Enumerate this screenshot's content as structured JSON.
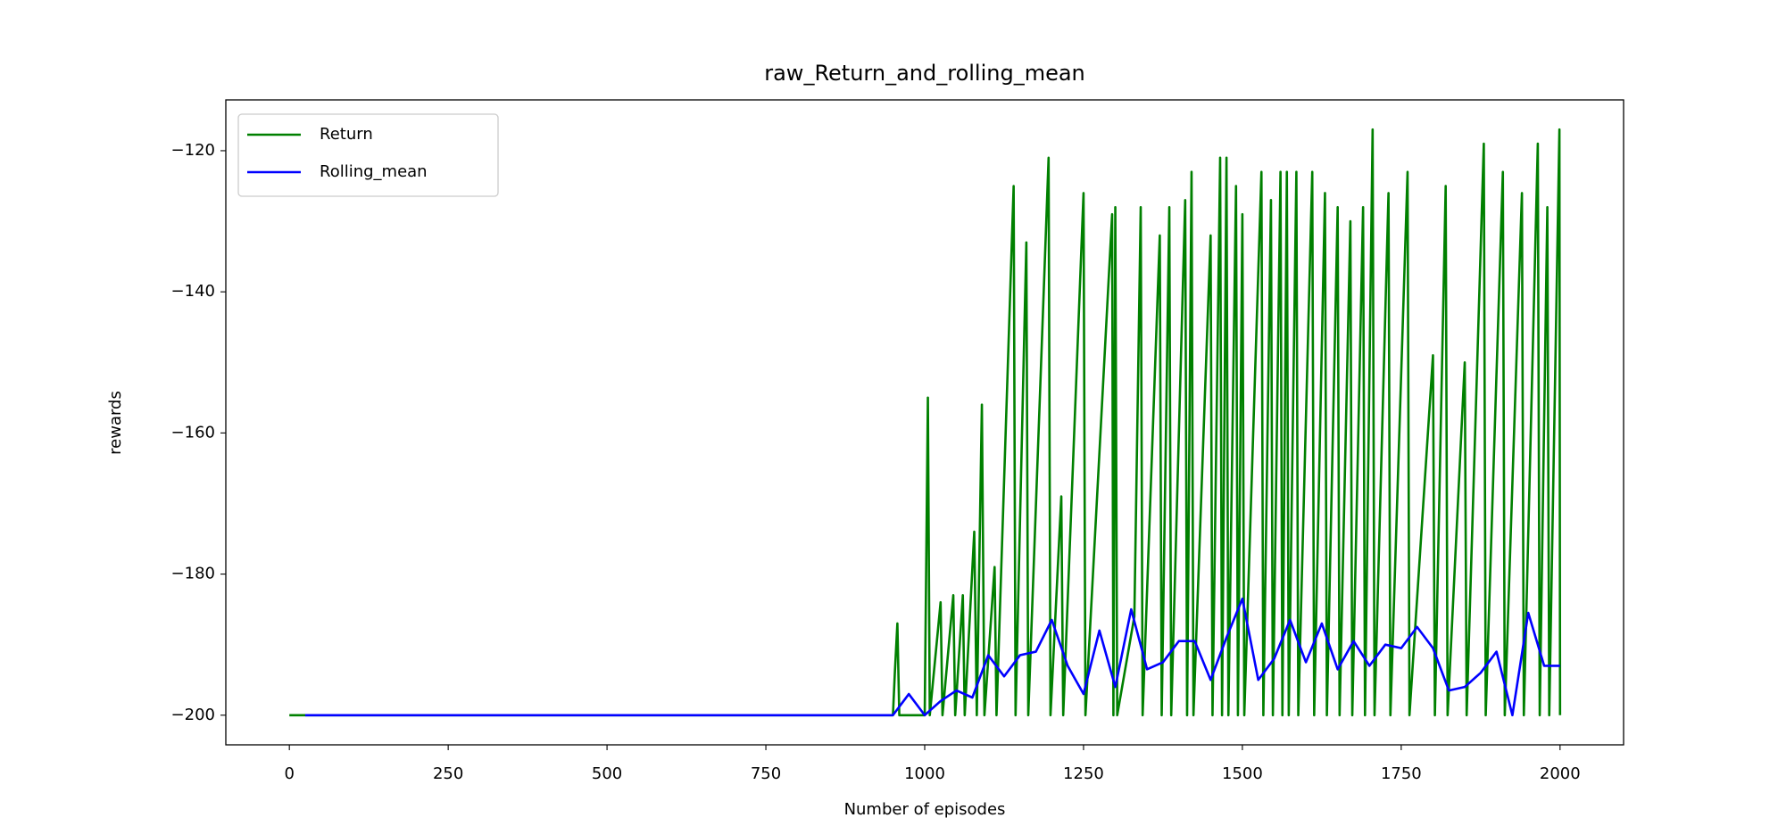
{
  "chart_data": {
    "type": "line",
    "title": "raw_Return_and_rolling_mean",
    "xlabel": "Number of episodes",
    "ylabel": "rewards",
    "xlim": [
      -100,
      2100
    ],
    "ylim": [
      -204.2,
      -112.8
    ],
    "xticks": [
      0,
      250,
      500,
      750,
      1000,
      1250,
      1500,
      1750,
      2000
    ],
    "yticks": [
      {
        "value": -200,
        "label": "−200"
      },
      {
        "value": -180,
        "label": "−180"
      },
      {
        "value": -160,
        "label": "−160"
      },
      {
        "value": -140,
        "label": "−140"
      },
      {
        "value": -120,
        "label": "−120"
      }
    ],
    "legend": "upper left",
    "grid": false,
    "series": [
      {
        "name": "Return",
        "color": "#008000",
        "x": [
          0,
          950,
          953,
          957,
          960,
          1000,
          1005,
          1008,
          1025,
          1028,
          1045,
          1048,
          1060,
          1063,
          1078,
          1082,
          1090,
          1094,
          1110,
          1113,
          1140,
          1143,
          1160,
          1163,
          1195,
          1198,
          1215,
          1218,
          1250,
          1253,
          1295,
          1297,
          1300,
          1303,
          1330,
          1340,
          1343,
          1370,
          1373,
          1385,
          1388,
          1410,
          1413,
          1420,
          1423,
          1450,
          1453,
          1465,
          1468,
          1475,
          1478,
          1490,
          1493,
          1500,
          1503,
          1530,
          1533,
          1545,
          1548,
          1560,
          1563,
          1570,
          1573,
          1585,
          1588,
          1610,
          1613,
          1630,
          1633,
          1650,
          1653,
          1670,
          1673,
          1690,
          1693,
          1705,
          1708,
          1730,
          1733,
          1760,
          1763,
          1800,
          1803,
          1820,
          1823,
          1850,
          1853,
          1880,
          1883,
          1910,
          1913,
          1940,
          1943,
          1965,
          1968,
          1980,
          1983,
          1999,
          2000
        ],
        "values": [
          -200,
          -200,
          -194,
          -187,
          -200,
          -200,
          -155,
          -200,
          -184,
          -200,
          -183,
          -200,
          -183,
          -200,
          -174,
          -200,
          -156,
          -200,
          -179,
          -200,
          -125,
          -200,
          -133,
          -200,
          -121,
          -200,
          -169,
          -200,
          -126,
          -200,
          -129,
          -200,
          -128,
          -200,
          -186,
          -128,
          -200,
          -132,
          -200,
          -128,
          -200,
          -127,
          -200,
          -123,
          -200,
          -132,
          -200,
          -121,
          -200,
          -121,
          -200,
          -125,
          -200,
          -129,
          -200,
          -123,
          -200,
          -127,
          -200,
          -123,
          -200,
          -123,
          -200,
          -123,
          -200,
          -123,
          -200,
          -126,
          -200,
          -128,
          -200,
          -130,
          -200,
          -128,
          -200,
          -117,
          -200,
          -126,
          -200,
          -123,
          -200,
          -149,
          -200,
          -125,
          -200,
          -150,
          -200,
          -119,
          -200,
          -123,
          -200,
          -126,
          -200,
          -119,
          -200,
          -128,
          -200,
          -117,
          -200
        ]
      },
      {
        "name": "Rolling_mean",
        "color": "#0000ff",
        "x": [
          25,
          950,
          975,
          1000,
          1025,
          1050,
          1075,
          1100,
          1125,
          1150,
          1175,
          1200,
          1225,
          1250,
          1275,
          1300,
          1325,
          1350,
          1375,
          1400,
          1425,
          1450,
          1475,
          1500,
          1525,
          1550,
          1575,
          1600,
          1625,
          1650,
          1675,
          1700,
          1725,
          1750,
          1775,
          1800,
          1825,
          1850,
          1875,
          1900,
          1925,
          1950,
          1975,
          2000
        ],
        "values": [
          -200,
          -200,
          -197,
          -200,
          -198,
          -196.5,
          -197.5,
          -191.5,
          -194.5,
          -191.5,
          -191,
          -186.5,
          -193,
          -197,
          -188,
          -196,
          -185,
          -193.5,
          -192.5,
          -189.5,
          -189.5,
          -195,
          -189,
          -183.5,
          -195,
          -192,
          -186.5,
          -192.5,
          -187,
          -193.5,
          -189.5,
          -193,
          -190,
          -190.5,
          -187.5,
          -190.5,
          -196.5,
          -196,
          -194,
          -191,
          -200,
          -185.5,
          -193,
          -193
        ]
      }
    ]
  }
}
